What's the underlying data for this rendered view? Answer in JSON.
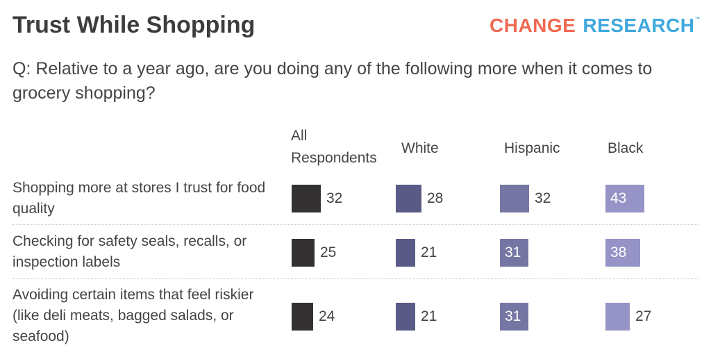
{
  "title": "Trust While Shopping",
  "logo": {
    "part1": "CHANGE",
    "part2": "RESEARCH",
    "tm": "™"
  },
  "question": "Q: Relative to a year ago, are you doing any of the following more when it comes to grocery shopping?",
  "chart_data": {
    "type": "table",
    "title": "Trust While Shopping",
    "columns": [
      "All Respondents",
      "White",
      "Hispanic",
      "Black"
    ],
    "column_colors": [
      "#333132",
      "#5a5a86",
      "#7676a4",
      "#9693c6"
    ],
    "rows": [
      {
        "label": "Shopping more at stores I trust for food quality",
        "values": [
          32,
          28,
          32,
          43
        ],
        "label_inside": [
          false,
          false,
          false,
          true
        ]
      },
      {
        "label": "Checking for safety seals, recalls, or inspection labels",
        "values": [
          25,
          21,
          31,
          38
        ],
        "label_inside": [
          false,
          false,
          true,
          true
        ]
      },
      {
        "label": "Avoiding certain items that feel riskier (like deli meats, bagged salads, or seafood)",
        "values": [
          24,
          21,
          31,
          27
        ],
        "label_inside": [
          false,
          false,
          true,
          false
        ]
      }
    ]
  }
}
